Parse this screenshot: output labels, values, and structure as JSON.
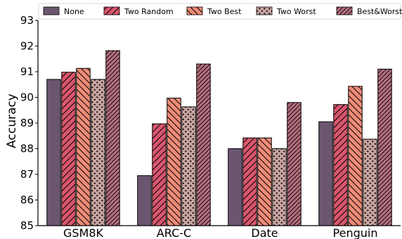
{
  "chart_data": {
    "type": "bar",
    "title": "",
    "xlabel": "",
    "ylabel": "Accuracy",
    "ylim": [
      85,
      93
    ],
    "yticks": [
      85,
      86,
      87,
      88,
      89,
      90,
      91,
      92,
      93
    ],
    "grid": false,
    "legend_position": "top",
    "categories": [
      "GSM8K",
      "ARC-C",
      "Date",
      "Penguin"
    ],
    "series": [
      {
        "name": "None",
        "values": [
          90.7,
          86.95,
          88.0,
          89.05
        ],
        "color": "#6b5670",
        "pattern": "solid"
      },
      {
        "name": "Two Random",
        "values": [
          90.98,
          88.97,
          88.42,
          89.72
        ],
        "color": "#d9566e",
        "pattern": "diagonal"
      },
      {
        "name": "Two Best",
        "values": [
          91.13,
          89.97,
          88.42,
          90.43
        ],
        "color": "#ee8b78",
        "pattern": "backdiagonal"
      },
      {
        "name": "Two Worst",
        "values": [
          90.7,
          89.63,
          88.0,
          88.37
        ],
        "color": "#c7a3a0",
        "pattern": "dots"
      },
      {
        "name": "Best&Worst",
        "values": [
          91.82,
          91.3,
          89.8,
          91.1
        ],
        "color": "#b56e7e",
        "pattern": "dense-diagonal"
      }
    ]
  }
}
